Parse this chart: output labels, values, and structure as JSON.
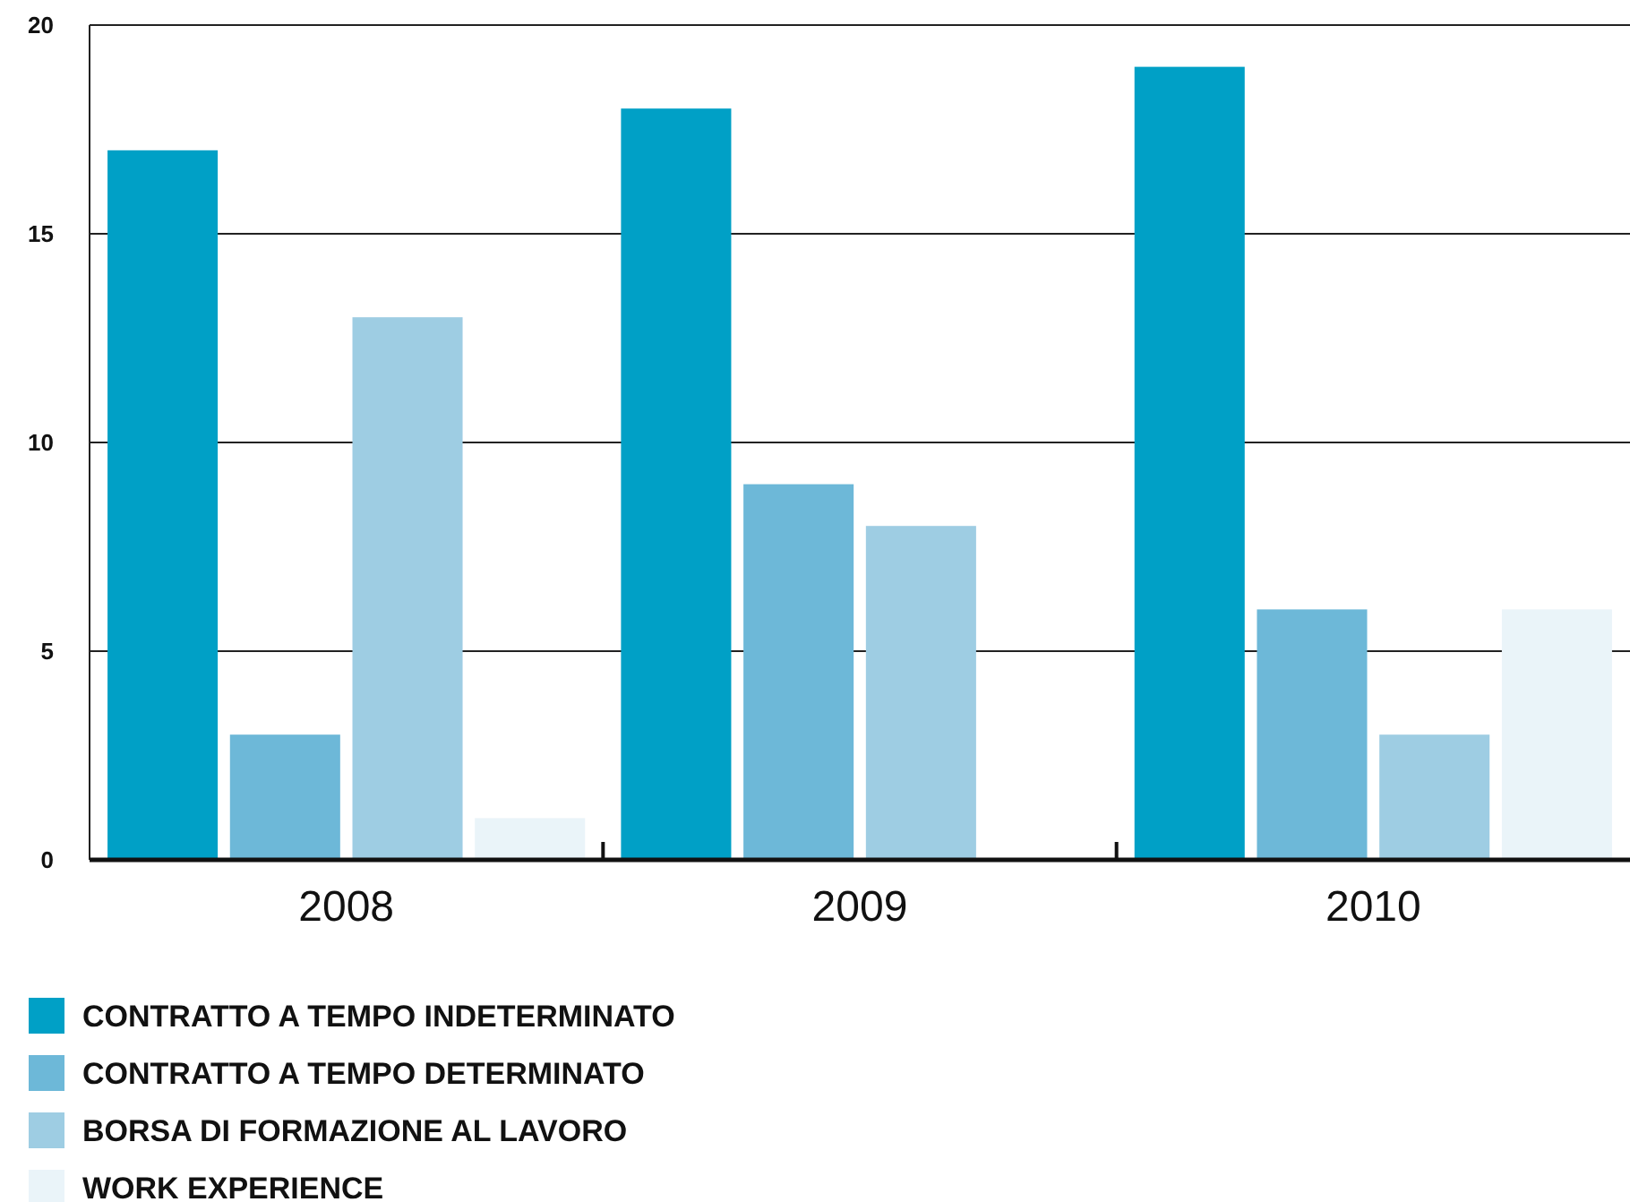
{
  "chart_data": {
    "type": "bar",
    "categories": [
      "2008",
      "2009",
      "2010"
    ],
    "series": [
      {
        "name": "CONTRATTO A TEMPO INDETERMINATO",
        "color": "#00a0c6",
        "values": [
          17,
          18,
          19
        ]
      },
      {
        "name": "CONTRATTO A TEMPO DETERMINATO",
        "color": "#6db8d8",
        "values": [
          3,
          9,
          6
        ]
      },
      {
        "name": "BORSA DI FORMAZIONE AL LAVORO",
        "color": "#9ecde3",
        "values": [
          13,
          8,
          3
        ]
      },
      {
        "name": "WORK EXPERIENCE",
        "color": "#eaf4f9",
        "values": [
          1,
          null,
          6
        ]
      }
    ],
    "ylim": [
      0,
      20
    ],
    "yticks": [
      0,
      5,
      10,
      15,
      20
    ],
    "grid": "y",
    "legend": "bottom"
  }
}
